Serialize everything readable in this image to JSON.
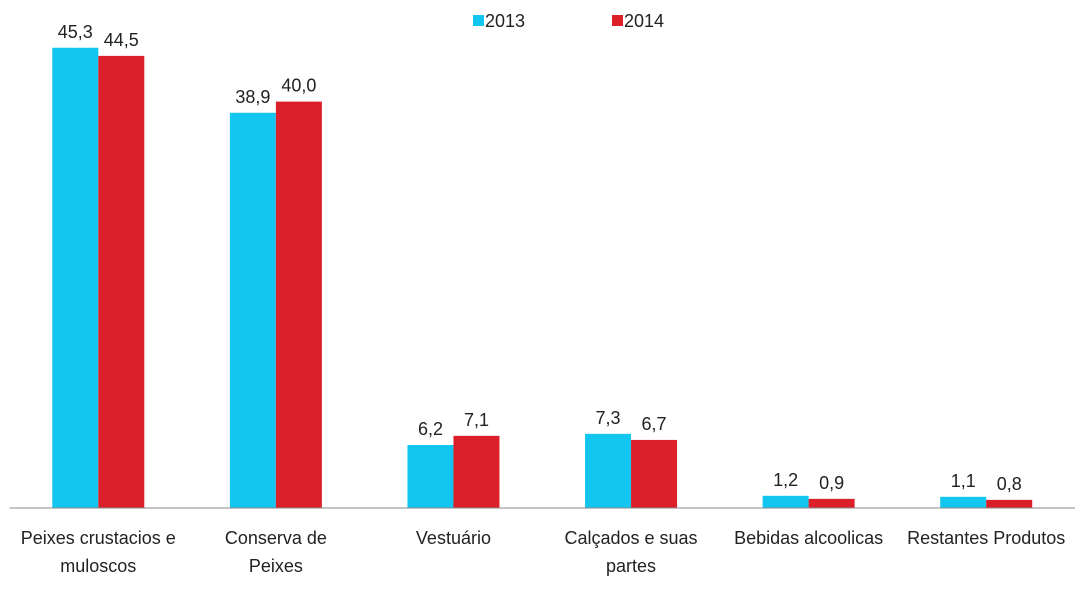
{
  "chart_data": {
    "type": "bar",
    "categories": [
      "Peixes crustacios e muloscos",
      "Conserva de Peixes",
      "Vestuário",
      "Calçados e suas partes",
      "Bebidas alcoolicas",
      "Restantes Produtos"
    ],
    "series": [
      {
        "name": "2013",
        "color": "#12c6f0",
        "values": [
          45.3,
          38.9,
          6.2,
          7.3,
          1.2,
          1.1
        ],
        "value_labels": [
          "45,3",
          "38,9",
          "6,2",
          "7,3",
          "1,2",
          "1,1"
        ]
      },
      {
        "name": "2014",
        "color": "#dc202a",
        "values": [
          44.5,
          40.0,
          7.1,
          6.7,
          0.9,
          0.8
        ],
        "value_labels": [
          "44,5",
          "40,0",
          "7,1",
          "6,7",
          "0,9",
          "0,8"
        ]
      }
    ],
    "ylim": [
      0,
      50
    ],
    "legend": "top"
  }
}
